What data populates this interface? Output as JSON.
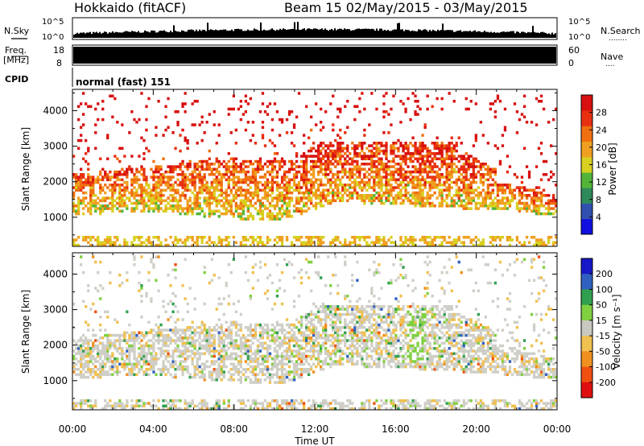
{
  "header": {
    "radar": "Hokkaido (fitACF)",
    "beam": "Beam 15 02/May/2015 - 03/May/2015"
  },
  "nsky_panel": {
    "left_label": "N.Sky",
    "right_label": "N.Search",
    "right_dots": "........",
    "ticks": [
      "10^5",
      "10^0"
    ]
  },
  "freq_panel": {
    "left_label_1": "Freq.",
    "left_label_2": "[MHz]",
    "left_ticks": [
      "18",
      "8"
    ],
    "right_label": "Nave",
    "right_dots": "....",
    "right_ticks": [
      "60",
      "0"
    ]
  },
  "cpid_panel": {
    "left_label": "CPID",
    "mode_text": "normal (fast) 151"
  },
  "chart_data": [
    {
      "type": "heatmap",
      "name_text": "power",
      "ylabel": "Slant Range [km]",
      "yticks": [
        1000,
        2000,
        3000,
        4000
      ],
      "ylim": [
        180,
        4600
      ],
      "xlim": [
        0,
        24
      ],
      "colorbar": {
        "label": "Power [dB]",
        "ticks": [
          "4",
          "8",
          "12",
          "16",
          "20",
          "24",
          "28"
        ],
        "range": [
          0,
          32
        ],
        "colors": [
          "#1010e0",
          "#3050b0",
          "#2e8a5a",
          "#52b53a",
          "#d8d020",
          "#f0a020",
          "#f07010",
          "#e83010",
          "#d81010"
        ]
      }
    },
    {
      "type": "heatmap",
      "name_text": "velocity",
      "ylabel": "Slant Range [km]",
      "yticks": [
        1000,
        2000,
        3000,
        4000
      ],
      "ylim": [
        180,
        4600
      ],
      "xlim": [
        0,
        24
      ],
      "colorbar": {
        "label": "Velocity [m s⁻¹]",
        "ticks": [
          "200",
          "100",
          "50",
          "15",
          "-15",
          "-50",
          "-100",
          "-200"
        ],
        "colors": [
          "#1818c8",
          "#3060c0",
          "#30a050",
          "#80d040",
          "#c8c8c0",
          "#f0c050",
          "#f09020",
          "#f05010",
          "#e01010"
        ]
      }
    }
  ],
  "xaxis": {
    "label": "Time UT",
    "ticks": [
      "00:00",
      "04:00",
      "08:00",
      "12:00",
      "16:00",
      "20:00",
      "00:00"
    ]
  }
}
